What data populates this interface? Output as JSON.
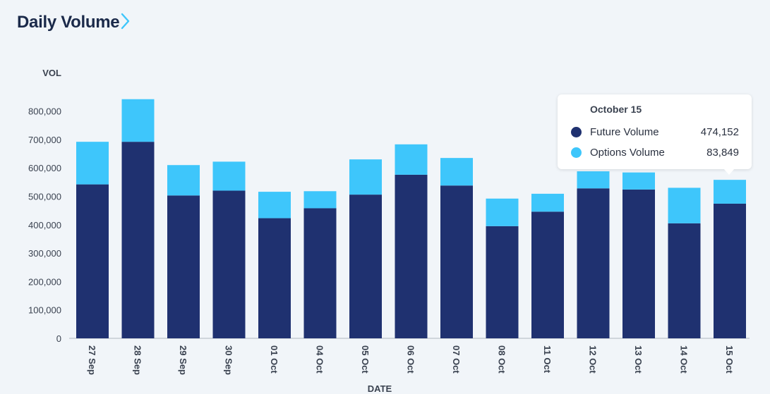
{
  "header": {
    "title": "Daily Volume",
    "chevron_icon": "chevron-right-icon"
  },
  "colors": {
    "future": "#1f3170",
    "options": "#3ec6fb",
    "accent": "#3ec6fb"
  },
  "chart_data": {
    "type": "bar",
    "stacked": true,
    "ylabel": "VOL",
    "xlabel": "DATE",
    "ylim": [
      0,
      850000
    ],
    "yticks": [
      0,
      100000,
      200000,
      300000,
      400000,
      500000,
      600000,
      700000,
      800000
    ],
    "ytick_labels": [
      "0",
      "100,000",
      "200,000",
      "300,000",
      "400,000",
      "500,000",
      "600,000",
      "700,000",
      "800,000"
    ],
    "categories": [
      "27 Sep",
      "28 Sep",
      "29 Sep",
      "30 Sep",
      "01 Oct",
      "04 Oct",
      "05 Oct",
      "06 Oct",
      "07 Oct",
      "08 Oct",
      "11 Oct",
      "12 Oct",
      "13 Oct",
      "14 Oct",
      "15 Oct"
    ],
    "series": [
      {
        "name": "Future Volume",
        "color": "#1f3170",
        "values": [
          542000,
          692000,
          503000,
          520000,
          423000,
          458000,
          506000,
          576000,
          538000,
          395000,
          446000,
          528000,
          524000,
          405000,
          474152
        ]
      },
      {
        "name": "Options Volume",
        "color": "#3ec6fb",
        "values": [
          150000,
          150000,
          107000,
          102000,
          93000,
          60000,
          124000,
          107000,
          97000,
          97000,
          63000,
          60000,
          60000,
          125000,
          83849
        ]
      }
    ],
    "grid": false,
    "legend": "none"
  },
  "tooltip": {
    "title": "October 15",
    "rows": [
      {
        "label": "Future Volume",
        "value": "474,152",
        "color": "#1f3170"
      },
      {
        "label": "Options Volume",
        "value": "83,849",
        "color": "#3ec6fb"
      }
    ]
  }
}
